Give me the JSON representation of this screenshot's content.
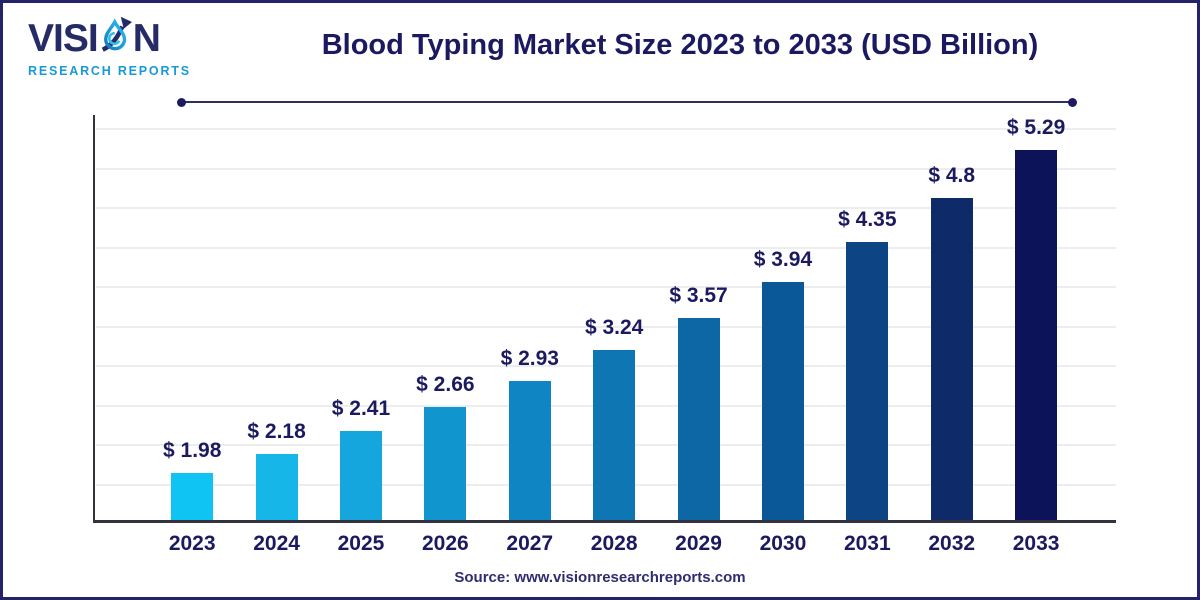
{
  "header": {
    "logo": {
      "brand_prefix": "VISI",
      "brand_suffix": "N",
      "subtitle": "RESEARCH REPORTS"
    },
    "title": "Blood Typing Market Size 2023 to 2033 (USD Billion)"
  },
  "chart_data": {
    "type": "bar",
    "title": "Blood Typing Market Size 2023 to 2033 (USD Billion)",
    "categories": [
      "2023",
      "2024",
      "2025",
      "2026",
      "2027",
      "2028",
      "2029",
      "2030",
      "2031",
      "2032",
      "2033"
    ],
    "values": [
      1.98,
      2.18,
      2.41,
      2.66,
      2.93,
      3.24,
      3.57,
      3.94,
      4.35,
      4.8,
      5.29
    ],
    "value_labels": [
      "$ 1.98",
      "$ 2.18",
      "$ 2.41",
      "$ 2.66",
      "$ 2.93",
      "$ 3.24",
      "$ 3.57",
      "$ 3.94",
      "$ 4.35",
      "$ 4.8",
      "$ 5.29"
    ],
    "bar_colors": [
      "#0fc4f2",
      "#17b6e9",
      "#14a6dd",
      "#1195ce",
      "#0f86c3",
      "#0e76b3",
      "#0d67a5",
      "#0a5897",
      "#0d4484",
      "#0e2a68",
      "#0d1358"
    ],
    "unit": "USD Billion",
    "xlabel": "",
    "ylabel": "",
    "ylim": [
      1.5,
      5.55
    ],
    "grid": "horizontal",
    "gridline_count": 10,
    "legend": "none"
  },
  "footer": {
    "source": "Source: www.visionresearchreports.com"
  },
  "colors": {
    "navy_text": "#1b1a60",
    "logo_navy": "#242b66",
    "logo_blue": "#189ad7",
    "axis": "#33333d",
    "gridline": "#ededed",
    "frame_border": "#23226a"
  }
}
